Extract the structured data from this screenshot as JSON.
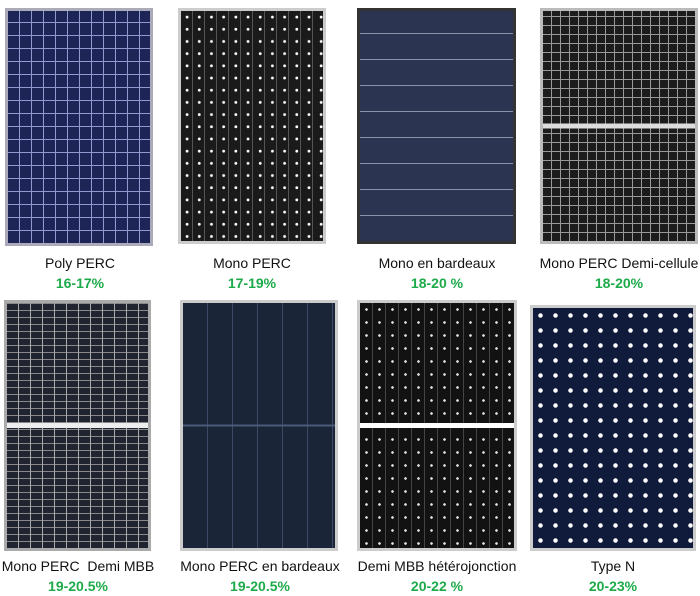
{
  "accent_color": "#1daa4a",
  "panels": [
    {
      "name": "Poly PERC",
      "efficiency": "16-17%"
    },
    {
      "name": "Mono PERC",
      "efficiency": "17-19%"
    },
    {
      "name": "Mono en bardeaux",
      "efficiency": "18-20 %"
    },
    {
      "name": "Mono PERC Demi-cellule",
      "efficiency": "18-20%"
    },
    {
      "name": "Mono PERC  Demi MBB",
      "efficiency": "19-20.5%"
    },
    {
      "name": "Mono PERC en bardeaux",
      "efficiency": "19-20.5%"
    },
    {
      "name": "Demi MBB hétérojonction",
      "efficiency": "20-22 %"
    },
    {
      "name": "Type N",
      "efficiency": "20-23%"
    }
  ]
}
